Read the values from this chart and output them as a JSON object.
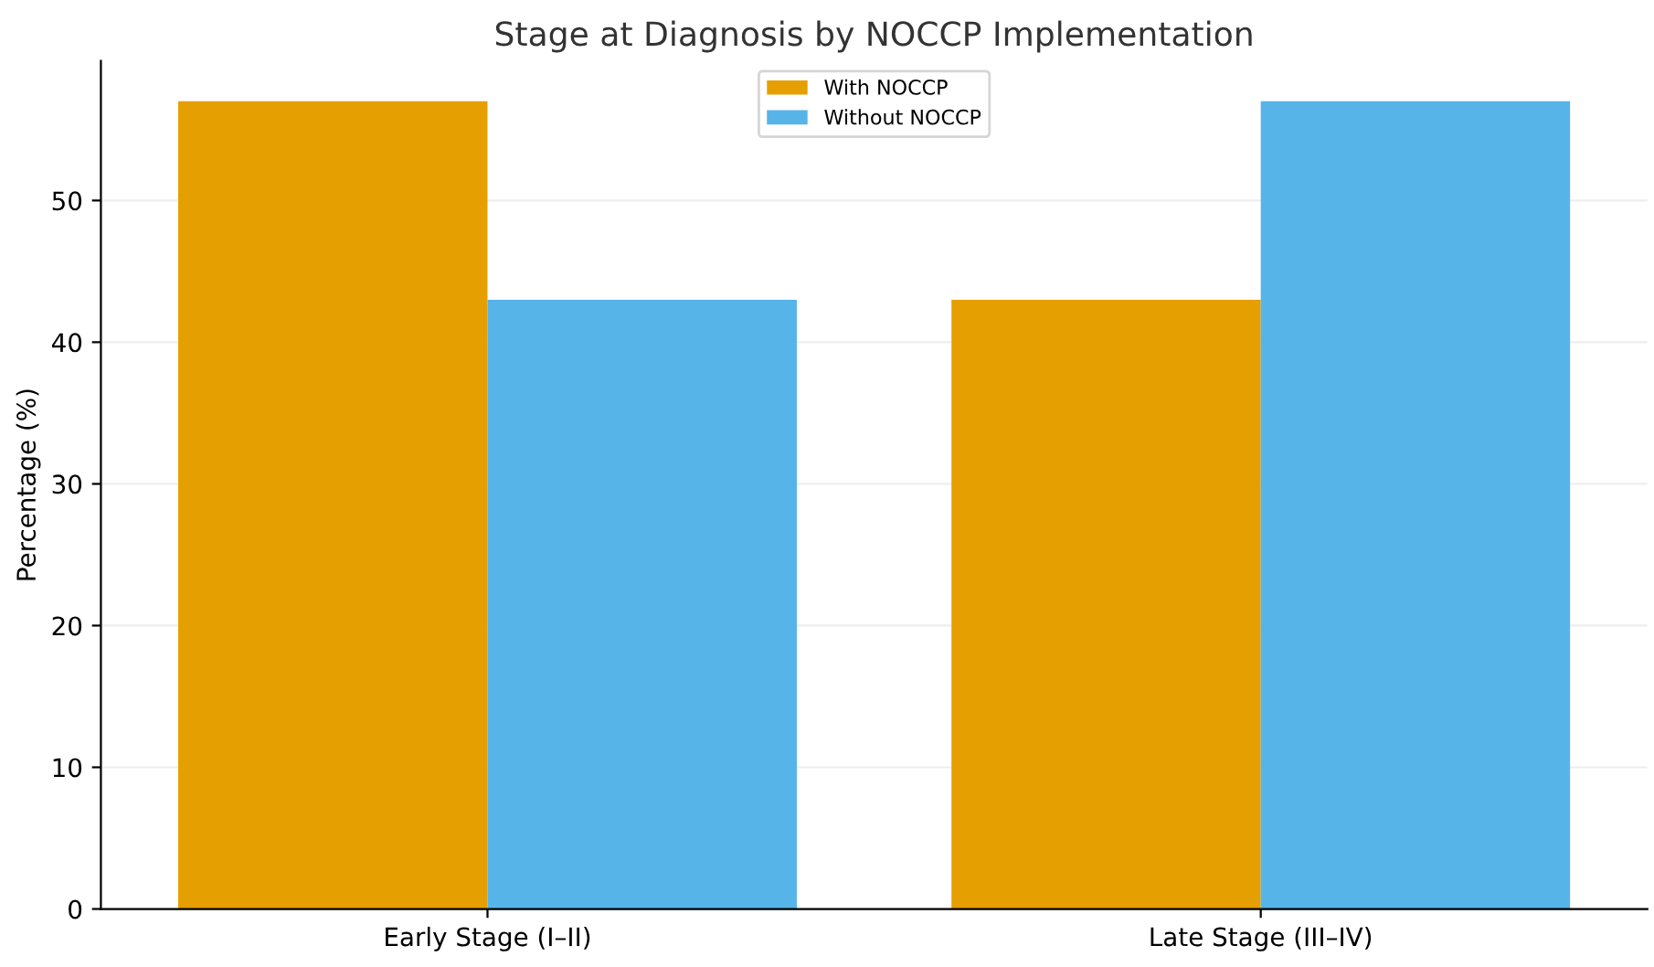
{
  "chart_data": {
    "type": "bar",
    "title": "Stage at Diagnosis by NOCCP Implementation",
    "ylabel": "Percentage (%)",
    "categories": [
      "Early Stage (I–II)",
      "Late Stage (III–IV)"
    ],
    "series": [
      {
        "name": "With NOCCP",
        "color": "#e69f00",
        "values": [
          57,
          43
        ]
      },
      {
        "name": "Without NOCCP",
        "color": "#56b4e9",
        "values": [
          43,
          57
        ]
      }
    ],
    "ylim": [
      0,
      59.85
    ],
    "yticks": [
      0,
      10,
      20,
      30,
      40,
      50
    ],
    "grid": "y",
    "legend": "top"
  }
}
